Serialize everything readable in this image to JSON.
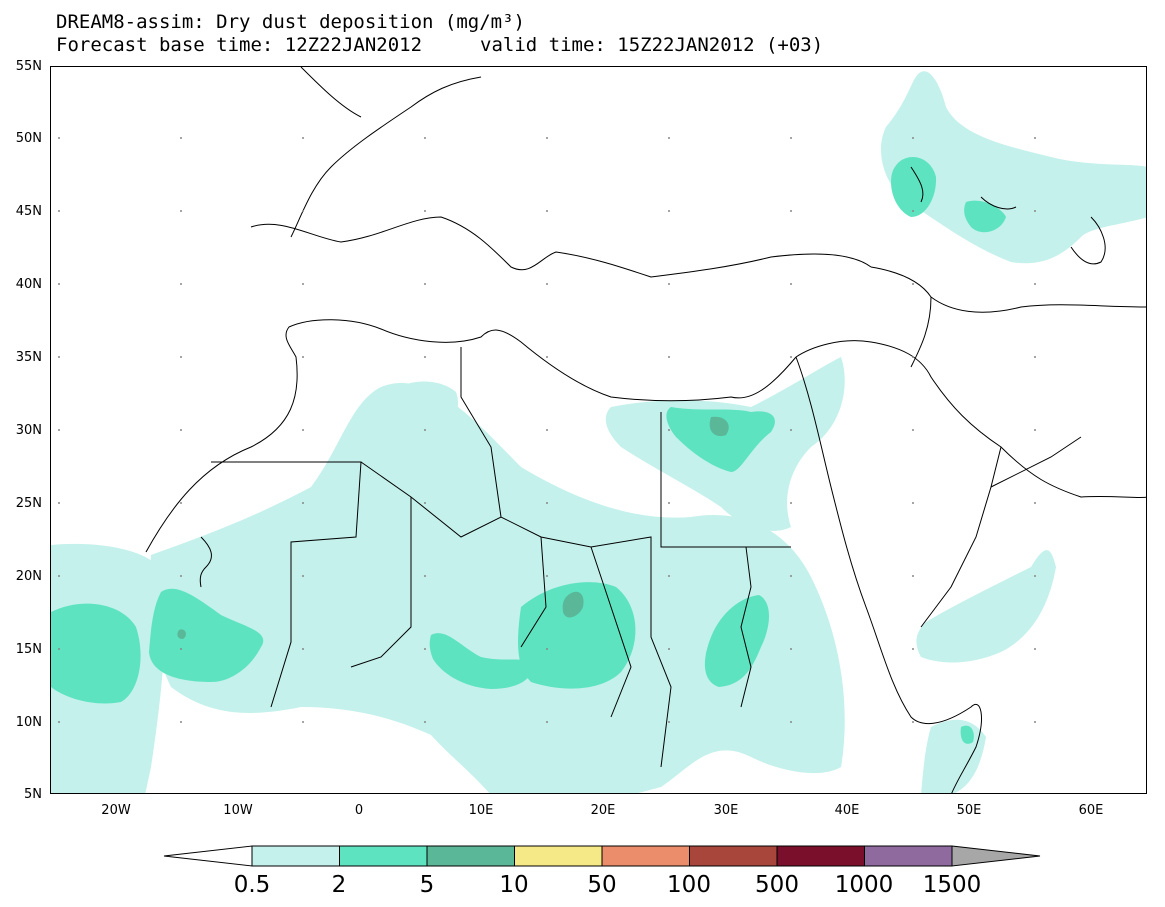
{
  "title": {
    "line1": "DREAM8-assim: Dry dust deposition (mg/m³)",
    "line2_left": "Forecast base time: 12Z22JAN2012",
    "line2_right": "valid time: 15Z22JAN2012 (+03)"
  },
  "lat_labels": [
    "55N",
    "50N",
    "45N",
    "40N",
    "35N",
    "30N",
    "25N",
    "20N",
    "15N",
    "10N",
    "5N"
  ],
  "lon_labels": [
    "20W",
    "10W",
    "0",
    "10E",
    "20E",
    "30E",
    "40E",
    "50E",
    "60E"
  ],
  "colorbar": {
    "labels": [
      "0.5",
      "2",
      "5",
      "10",
      "50",
      "100",
      "500",
      "1000",
      "1500"
    ],
    "colors": [
      "#c4f1ec",
      "#5ee3c0",
      "#5ab898",
      "#f5e886",
      "#eb8c6a",
      "#a8463c",
      "#7a0f2c",
      "#8e6a9e",
      "#a7a7a7"
    ]
  },
  "map_colors": {
    "light": "#c4f1ec",
    "medium": "#5ee3c0",
    "dark": "#5ab898",
    "border": "#000000"
  }
}
